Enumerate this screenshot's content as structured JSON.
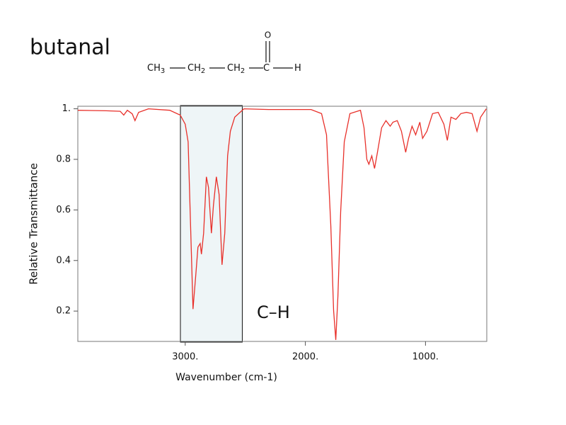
{
  "chart_data": {
    "type": "line",
    "title": "butanal",
    "formula": {
      "groups": [
        {
          "text": "CH",
          "sub": "3"
        },
        {
          "text": "CH",
          "sub": "2"
        },
        {
          "text": "CH",
          "sub": "2"
        },
        {
          "text": "C"
        },
        {
          "text": "H"
        }
      ],
      "oxygen": "O"
    },
    "xlabel": "Wavenumber (cm-1)",
    "ylabel": "Relative Transmittance",
    "annotation": "C–H",
    "highlight_range": [
      3040,
      2525
    ],
    "color": "#e8302a",
    "xlim": [
      3894,
      490
    ],
    "ylim": [
      0.08,
      1.01
    ],
    "xticks": [
      {
        "value": 3000,
        "label": "3000."
      },
      {
        "value": 2000,
        "label": "2000."
      },
      {
        "value": 1000,
        "label": "1000."
      }
    ],
    "yticks": [
      0.2,
      0.4,
      0.6,
      0.8,
      {
        "value": 1,
        "label": "1."
      }
    ],
    "x": [
      3894,
      3659,
      3541,
      3512,
      3482,
      3441,
      3418,
      3388,
      3306,
      3129,
      3041,
      3000,
      2976,
      2959,
      2935,
      2912,
      2894,
      2876,
      2865,
      2847,
      2824,
      2806,
      2782,
      2765,
      2741,
      2718,
      2694,
      2671,
      2647,
      2624,
      2588,
      2512,
      2306,
      1953,
      1865,
      1824,
      1788,
      1765,
      1747,
      1729,
      1706,
      1676,
      1629,
      1541,
      1512,
      1488,
      1471,
      1447,
      1424,
      1400,
      1365,
      1329,
      1294,
      1271,
      1235,
      1200,
      1165,
      1141,
      1112,
      1082,
      1047,
      1024,
      988,
      941,
      894,
      847,
      818,
      788,
      747,
      706,
      659,
      612,
      571,
      541,
      494
    ],
    "values": [
      0.994,
      0.992,
      0.99,
      0.975,
      0.994,
      0.98,
      0.953,
      0.986,
      1.0,
      0.994,
      0.975,
      0.939,
      0.869,
      0.592,
      0.208,
      0.342,
      0.453,
      0.467,
      0.425,
      0.508,
      0.731,
      0.689,
      0.508,
      0.619,
      0.731,
      0.661,
      0.383,
      0.508,
      0.814,
      0.911,
      0.967,
      1.0,
      0.997,
      0.997,
      0.981,
      0.897,
      0.536,
      0.203,
      0.086,
      0.258,
      0.592,
      0.869,
      0.981,
      0.994,
      0.925,
      0.8,
      0.781,
      0.814,
      0.764,
      0.828,
      0.925,
      0.953,
      0.931,
      0.947,
      0.953,
      0.911,
      0.828,
      0.883,
      0.931,
      0.897,
      0.947,
      0.883,
      0.911,
      0.981,
      0.986,
      0.939,
      0.875,
      0.967,
      0.958,
      0.981,
      0.986,
      0.981,
      0.911,
      0.967,
      1.0
    ]
  }
}
